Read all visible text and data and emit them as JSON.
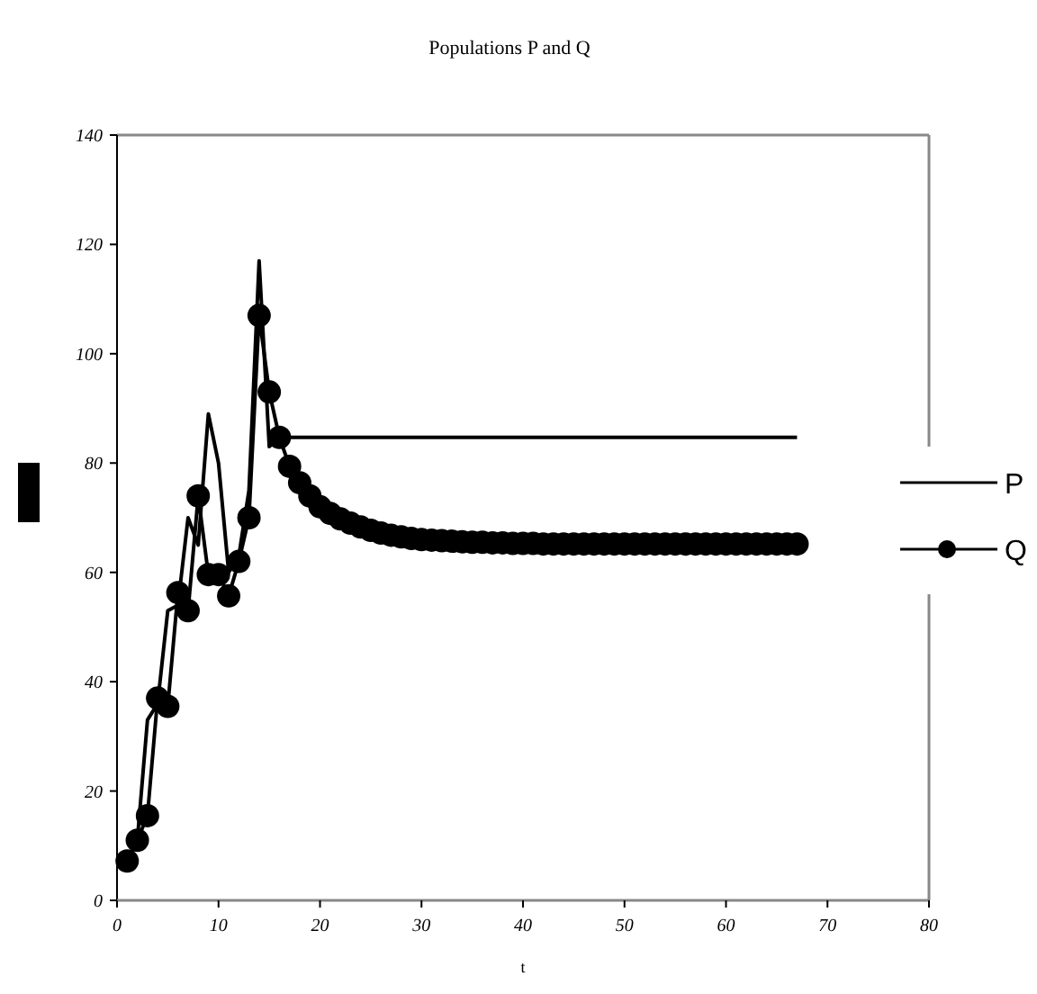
{
  "chart_data": {
    "type": "line",
    "title": "Populations P and Q",
    "xlabel": "t",
    "x": [
      1,
      2,
      3,
      4,
      5,
      6,
      7,
      8,
      9,
      10,
      11,
      12,
      13,
      14,
      15,
      16,
      17,
      18,
      19,
      20,
      21,
      22,
      23,
      24,
      25,
      26,
      27,
      28,
      29,
      30,
      31,
      32,
      33,
      34,
      35,
      36,
      37,
      38,
      39,
      40,
      41,
      42,
      43,
      44,
      45,
      46,
      47,
      48,
      49,
      50,
      51,
      52,
      53,
      54,
      55,
      56,
      57,
      58,
      59,
      60,
      61,
      62,
      63,
      64,
      65,
      66,
      67
    ],
    "xlim": [
      0,
      80
    ],
    "xticks": [
      0,
      10,
      20,
      30,
      40,
      50,
      60,
      70,
      80
    ],
    "ylim": [
      0,
      140
    ],
    "yticks": [
      0,
      20,
      40,
      60,
      80,
      100,
      120,
      140
    ],
    "legend": "right",
    "series": [
      {
        "name": "P",
        "color": "#000000",
        "marker": "none",
        "values": [
          7,
          11,
          33,
          36,
          53,
          54,
          70,
          65,
          89,
          80,
          60,
          63,
          75,
          117,
          83,
          84.7,
          84.7,
          84.7,
          84.7,
          84.7,
          84.7,
          84.7,
          84.7,
          84.7,
          84.7,
          84.7,
          84.7,
          84.7,
          84.7,
          84.7,
          84.7,
          84.7,
          84.7,
          84.7,
          84.7,
          84.7,
          84.7,
          84.7,
          84.7,
          84.7,
          84.7,
          84.7,
          84.7,
          84.7,
          84.7,
          84.7,
          84.7,
          84.7,
          84.7,
          84.7,
          84.7,
          84.7,
          84.7,
          84.7,
          84.7,
          84.7,
          84.7,
          84.7,
          84.7,
          84.7,
          84.7,
          84.7,
          84.7,
          84.7,
          84.7,
          84.7,
          84.7
        ]
      },
      {
        "name": "Q",
        "color": "#000000",
        "marker": "circle",
        "values": [
          7.2,
          11,
          15.5,
          37,
          35.5,
          56.3,
          53,
          74,
          59.6,
          59.6,
          55.7,
          62,
          70,
          107,
          93,
          84.7,
          79.4,
          76.4,
          74,
          72,
          70.8,
          69.8,
          69,
          68.3,
          67.7,
          67.2,
          66.8,
          66.5,
          66.2,
          66,
          65.9,
          65.8,
          65.7,
          65.6,
          65.5,
          65.5,
          65.4,
          65.4,
          65.3,
          65.3,
          65.3,
          65.2,
          65.2,
          65.2,
          65.2,
          65.2,
          65.2,
          65.2,
          65.2,
          65.2,
          65.2,
          65.2,
          65.2,
          65.2,
          65.2,
          65.2,
          65.2,
          65.2,
          65.2,
          65.2,
          65.2,
          65.2,
          65.2,
          65.2,
          65.2,
          65.2,
          65.2
        ]
      }
    ]
  }
}
